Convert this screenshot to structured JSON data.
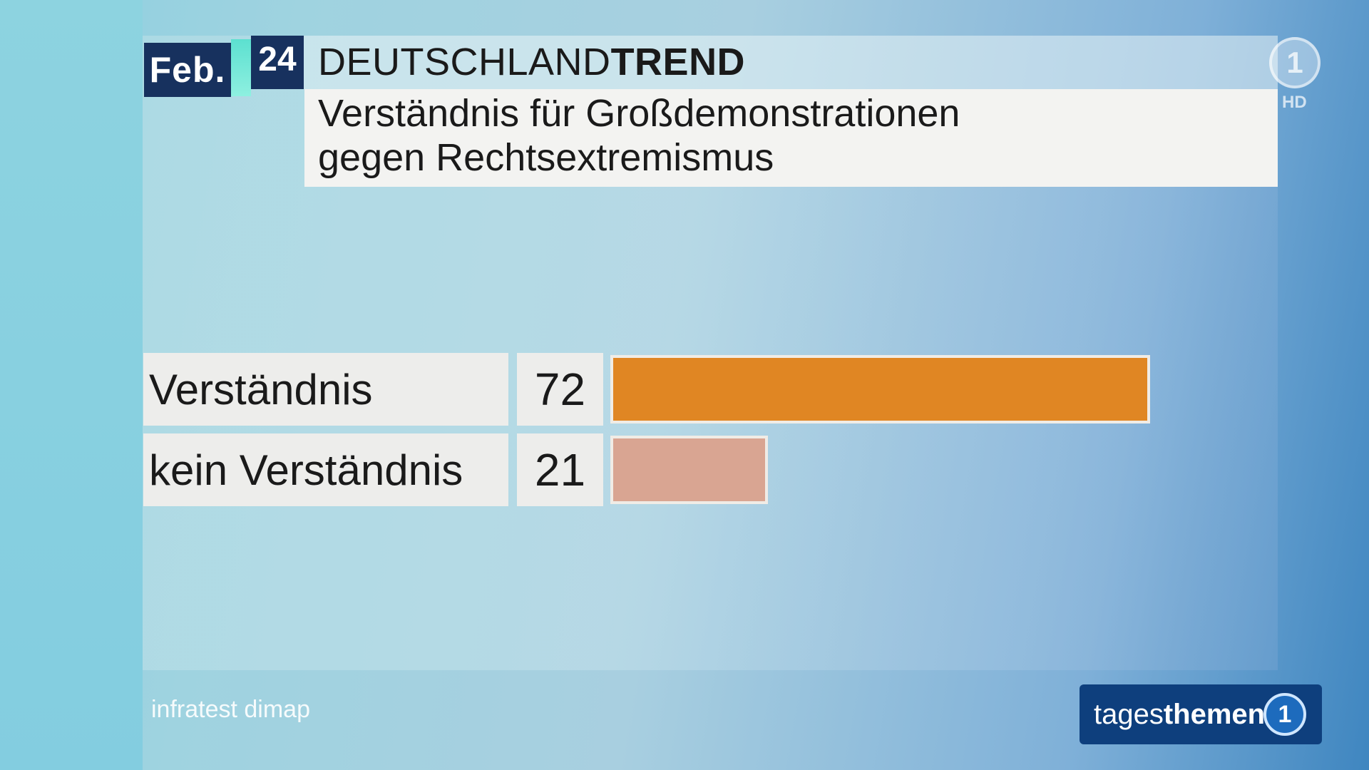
{
  "header": {
    "month": "Feb.",
    "year": "24",
    "brand_light": "DEUTSCHLAND",
    "brand_bold": "TREND",
    "title_line1": "Verständnis für Großdemonstrationen",
    "title_line2": "gegen Rechtsextremismus"
  },
  "channel_logo": {
    "symbol": "1",
    "hd": "HD"
  },
  "source": "infratest dimap",
  "show_badge": {
    "light": "tages",
    "bold": "themen",
    "symbol": "1"
  },
  "colors": {
    "bar_primary": "#e08623",
    "bar_secondary": "#d9a592",
    "badge": "#0e3f7d",
    "date_bg": "#17315e"
  },
  "chart_data": {
    "type": "bar",
    "orientation": "horizontal",
    "title": "Verständnis für Großdemonstrationen gegen Rechtsextremismus",
    "categories": [
      "Verständnis",
      "kein Verständnis"
    ],
    "values": [
      72,
      21
    ],
    "value_labels": [
      "72",
      "21"
    ],
    "xlim": [
      0,
      100
    ]
  }
}
